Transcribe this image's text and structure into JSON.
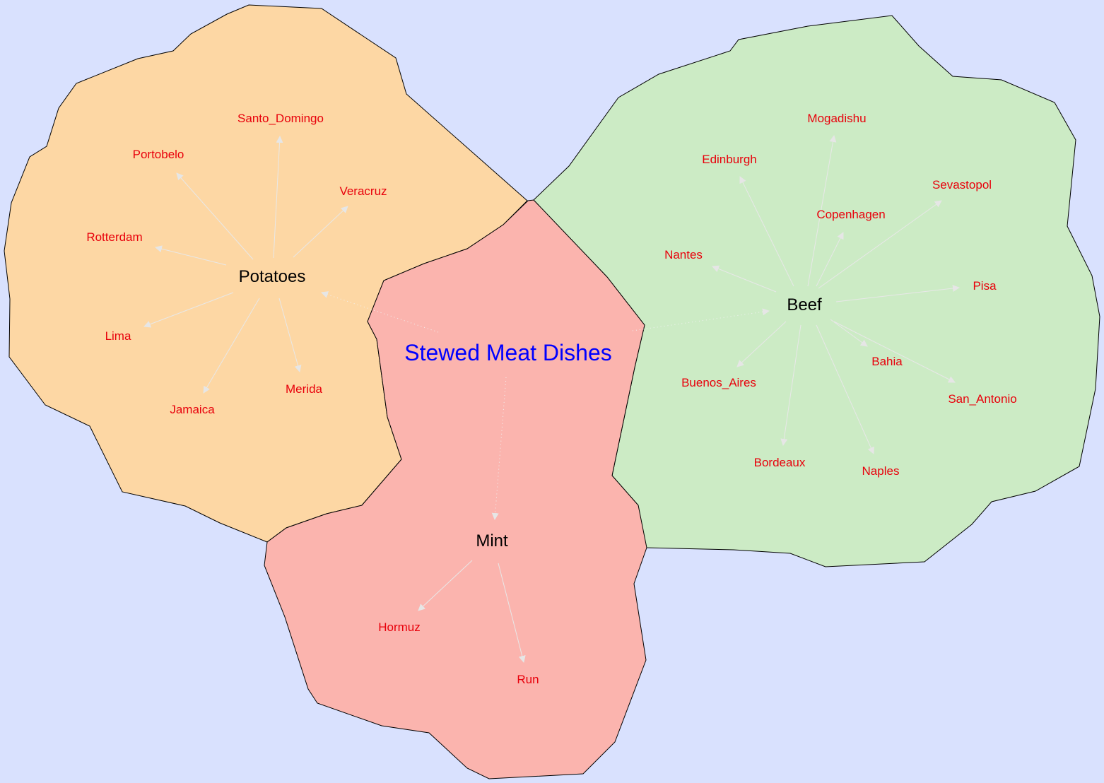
{
  "colors": {
    "background": "#d9e1fe",
    "leaf_text": "#e8000b",
    "root_text": "#0000ff",
    "potatoes_region": "#fdd7a4",
    "beef_region": "#ccebc5",
    "mint_region": "#fbb4ae",
    "arrow": "#e6e6e6"
  },
  "root": {
    "label": "Stewed Meat Dishes"
  },
  "hubs": [
    {
      "id": "potatoes",
      "label": "Potatoes",
      "leaves": [
        "Santo_Domingo",
        "Portobelo",
        "Veracruz",
        "Rotterdam",
        "Lima",
        "Merida",
        "Jamaica"
      ]
    },
    {
      "id": "beef",
      "label": "Beef",
      "leaves": [
        "Mogadishu",
        "Edinburgh",
        "Sevastopol",
        "Copenhagen",
        "Nantes",
        "Pisa",
        "Bahia",
        "Buenos_Aires",
        "San_Antonio",
        "Bordeaux",
        "Naples"
      ]
    },
    {
      "id": "mint",
      "label": "Mint",
      "leaves": [
        "Hormuz",
        "Run"
      ]
    }
  ]
}
